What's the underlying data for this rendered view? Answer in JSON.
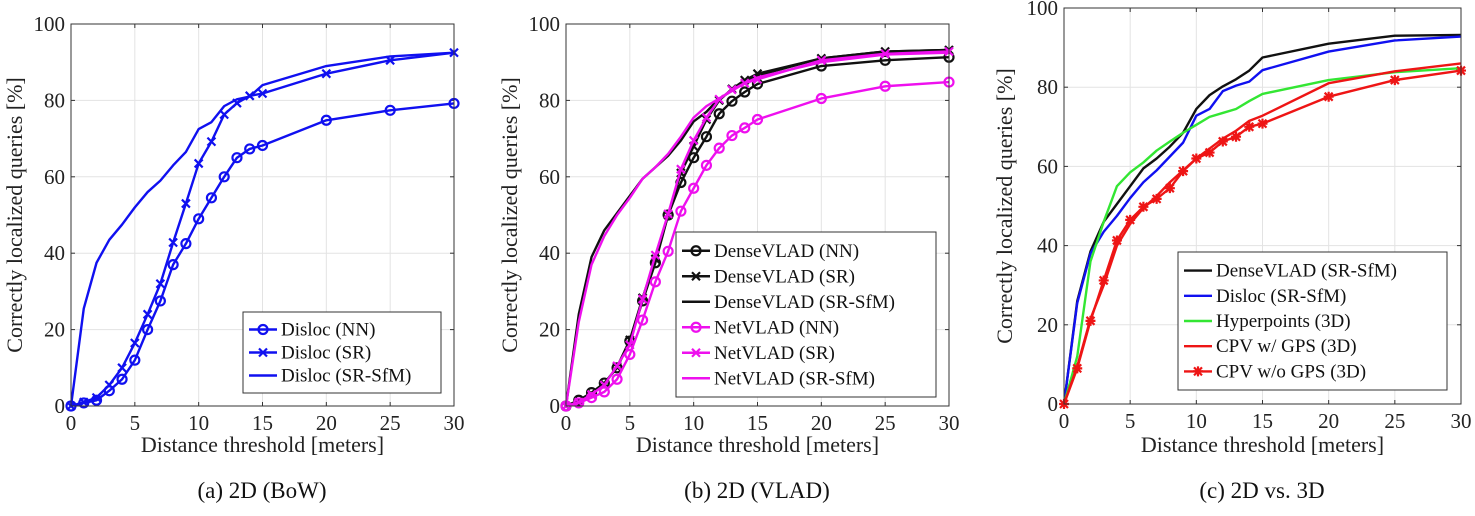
{
  "chart_data": [
    {
      "type": "line",
      "caption": "(a) 2D (BoW)",
      "xlabel": "Distance threshold [meters]",
      "ylabel": "Correctly localized queries [%]",
      "xlim": [
        0,
        30
      ],
      "ylim": [
        0,
        100
      ],
      "xticks": [
        0,
        5,
        10,
        15,
        20,
        25,
        30
      ],
      "yticks": [
        0,
        20,
        40,
        60,
        80,
        100
      ],
      "grid": true,
      "legend_position": "bottom-right",
      "x": [
        0,
        1,
        2,
        3,
        4,
        5,
        6,
        7,
        8,
        9,
        10,
        11,
        12,
        13,
        14,
        15,
        20,
        25,
        30
      ],
      "series": [
        {
          "name": "Disloc (NN)",
          "color": "#1010f0",
          "marker": "circle",
          "values": [
            0,
            0.8,
            1.5,
            4,
            7,
            12,
            20,
            27.5,
            37,
            42.5,
            49,
            54.5,
            60,
            65,
            67.3,
            68.2,
            74.8,
            77.4,
            79.2
          ]
        },
        {
          "name": "Disloc (SR)",
          "color": "#1010f0",
          "marker": "x",
          "values": [
            0,
            1,
            2.2,
            5.5,
            10,
            16.5,
            24,
            32,
            42.8,
            53,
            63.5,
            69.2,
            76.3,
            79.3,
            81.2,
            81.8,
            87,
            90.5,
            92.5
          ]
        },
        {
          "name": "Disloc (SR-SfM)",
          "color": "#1010f0",
          "marker": "none",
          "values": [
            0,
            25.5,
            37.5,
            43.5,
            47.5,
            52,
            56,
            59,
            63,
            66.5,
            72.5,
            74.3,
            78.5,
            80.3,
            81,
            84,
            89,
            91.5,
            92.5
          ]
        }
      ]
    },
    {
      "type": "line",
      "caption": "(b) 2D (VLAD)",
      "xlabel": "Distance threshold [meters]",
      "ylabel": "Correctly localized queries [%]",
      "xlim": [
        0,
        30
      ],
      "ylim": [
        0,
        100
      ],
      "xticks": [
        0,
        5,
        10,
        15,
        20,
        25,
        30
      ],
      "yticks": [
        0,
        20,
        40,
        60,
        80,
        100
      ],
      "grid": true,
      "legend_position": "bottom-right",
      "x": [
        0,
        1,
        2,
        3,
        4,
        5,
        6,
        7,
        8,
        9,
        10,
        11,
        12,
        13,
        14,
        15,
        20,
        25,
        30
      ],
      "series": [
        {
          "name": "DenseVLAD (NN)",
          "color": "#111111",
          "marker": "circle",
          "values": [
            0,
            1.5,
            3.5,
            6,
            10,
            17,
            27.5,
            37.5,
            50,
            58.5,
            65,
            70.5,
            76.5,
            79.8,
            82.2,
            84.3,
            89,
            90.5,
            91.3
          ]
        },
        {
          "name": "DenseVLAD (SR)",
          "color": "#111111",
          "marker": "x",
          "values": [
            0,
            1.3,
            3.2,
            5.8,
            10.2,
            17.3,
            28.3,
            38.5,
            50,
            61,
            68,
            75,
            80,
            83,
            85.3,
            87,
            91,
            92.8,
            93.2
          ]
        },
        {
          "name": "DenseVLAD (SR-SfM)",
          "color": "#111111",
          "marker": "none",
          "values": [
            0,
            24,
            39,
            46,
            50.5,
            55,
            59.5,
            62.5,
            65.5,
            69.5,
            74.5,
            77,
            80.5,
            82.5,
            85,
            86.5,
            91,
            92.8,
            93.2
          ]
        },
        {
          "name": "NetVLAD (NN)",
          "color": "#ee10ee",
          "marker": "circle",
          "values": [
            0,
            0.8,
            2.2,
            3.7,
            7,
            13.5,
            22.5,
            32.5,
            40.5,
            51,
            57,
            63,
            67.5,
            70.8,
            72.8,
            75,
            80.5,
            83.7,
            84.8
          ]
        },
        {
          "name": "NetVLAD (SR)",
          "color": "#ee10ee",
          "marker": "x",
          "values": [
            0,
            1,
            3,
            5.5,
            10.5,
            16,
            28,
            39.5,
            50.3,
            62,
            69.5,
            75.5,
            80.3,
            82.8,
            84.5,
            85.5,
            90.5,
            92.2,
            92.8
          ]
        },
        {
          "name": "NetVLAD (SR-SfM)",
          "color": "#ee10ee",
          "marker": "none",
          "values": [
            0,
            22,
            37,
            44.5,
            50,
            54.5,
            59.5,
            62.5,
            66,
            70.5,
            75.5,
            78.5,
            80.5,
            82.5,
            84.5,
            86,
            90,
            92,
            92.5
          ]
        }
      ]
    },
    {
      "type": "line",
      "caption": "(c) 2D vs. 3D",
      "xlabel": "Distance threshold [meters]",
      "ylabel": "Correctly localized queries [%]",
      "xlim": [
        0,
        30
      ],
      "ylim": [
        0,
        100
      ],
      "xticks": [
        0,
        5,
        10,
        15,
        20,
        25,
        30
      ],
      "yticks": [
        0,
        20,
        40,
        60,
        80,
        100
      ],
      "grid": true,
      "legend_position": "bottom-right",
      "x": [
        0,
        1,
        2,
        3,
        4,
        5,
        6,
        7,
        8,
        9,
        10,
        11,
        12,
        13,
        14,
        15,
        20,
        25,
        30
      ],
      "series": [
        {
          "name": "DenseVLAD (SR-SfM)",
          "color": "#111111",
          "marker": "none",
          "values": [
            0,
            26,
            38.5,
            46,
            50.5,
            55,
            59.5,
            62,
            65,
            68.5,
            74.5,
            78,
            80.2,
            82,
            84.2,
            87.5,
            91,
            93,
            93.2
          ]
        },
        {
          "name": "Disloc (SR-SfM)",
          "color": "#1010f0",
          "marker": "none",
          "values": [
            0,
            25.5,
            38,
            43.5,
            47.5,
            52,
            56,
            59,
            62.5,
            66,
            72.8,
            74.5,
            79,
            80.4,
            81.4,
            84.3,
            89,
            91.8,
            92.8
          ]
        },
        {
          "name": "Hyperpoints (3D)",
          "color": "#33e633",
          "marker": "none",
          "values": [
            0,
            12,
            36,
            46,
            55,
            58.5,
            61,
            64,
            66.3,
            68.5,
            70.5,
            72.5,
            73.5,
            74.5,
            76.5,
            78.3,
            81.8,
            83.8,
            84.8
          ]
        },
        {
          "name": "CPV w/ GPS (3D)",
          "color": "#ee1515",
          "marker": "none",
          "values": [
            0,
            9.5,
            21.5,
            30,
            40,
            45.5,
            49.5,
            52.5,
            56,
            59,
            62,
            64.5,
            67,
            69,
            71.5,
            72.8,
            81,
            84,
            86
          ]
        },
        {
          "name": "CPV w/o GPS (3D)",
          "color": "#ee1515",
          "marker": "star",
          "values": [
            0,
            9,
            21,
            31.2,
            41.3,
            46.5,
            49.8,
            51.8,
            54.5,
            58.8,
            62,
            63.5,
            66.3,
            67.5,
            70,
            70.8,
            77.6,
            81.8,
            84.2
          ]
        }
      ]
    }
  ]
}
